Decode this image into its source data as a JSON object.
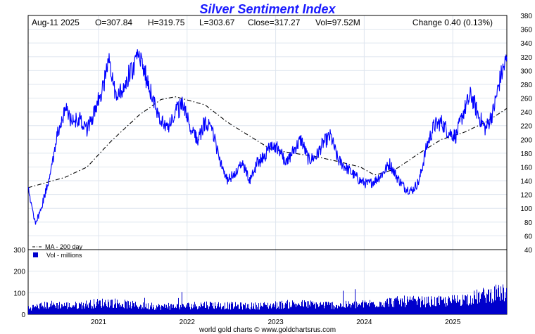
{
  "chart_data": {
    "type": "line",
    "title": "Silver Sentiment Index",
    "header": {
      "date": "Aug-11  2025",
      "open": "O=307.84",
      "high": "H=319.75",
      "low": "L=303.67",
      "close": "Close=317.27",
      "volume": "Vol=97.52M",
      "change": "Change 0.40 (0.13%)"
    },
    "x": {
      "ticks": [
        "2021",
        "2022",
        "2023",
        "2024",
        "2025"
      ],
      "range": [
        "2020-03",
        "2025-08-11"
      ]
    },
    "price_axis": {
      "ylim": [
        40,
        380
      ],
      "ticks": [
        40,
        60,
        80,
        100,
        120,
        140,
        160,
        180,
        200,
        220,
        240,
        260,
        280,
        300,
        320,
        340,
        360,
        380
      ]
    },
    "volume_axis": {
      "ylim": [
        0,
        300
      ],
      "ticks": [
        0,
        100,
        200,
        300
      ],
      "ticks_visible": [
        "0",
        "100",
        "200",
        "300"
      ]
    },
    "legend": {
      "ma_label": "MA - 200 day",
      "vol_label": "Vol - millions"
    },
    "footer": "world gold charts © www.goldchartsrus.com",
    "colors": {
      "price": "#0000ff",
      "ma": "#000000",
      "volume": "#0000cc",
      "title": "#1a1aff",
      "grid": "#dfe6ef"
    },
    "series": [
      {
        "name": "Index",
        "x": [
          "2020-03",
          "2020-04",
          "2020-05",
          "2020-06",
          "2020-07",
          "2020-08",
          "2020-09",
          "2020-10",
          "2020-11",
          "2020-12",
          "2021-01",
          "2021-02",
          "2021-03",
          "2021-04",
          "2021-05",
          "2021-06",
          "2021-07",
          "2021-08",
          "2021-09",
          "2021-10",
          "2021-11",
          "2021-12",
          "2022-01",
          "2022-02",
          "2022-03",
          "2022-04",
          "2022-05",
          "2022-06",
          "2022-07",
          "2022-08",
          "2022-09",
          "2022-10",
          "2022-11",
          "2022-12",
          "2023-01",
          "2023-02",
          "2023-03",
          "2023-04",
          "2023-05",
          "2023-06",
          "2023-07",
          "2023-08",
          "2023-09",
          "2023-10",
          "2023-11",
          "2023-12",
          "2024-01",
          "2024-02",
          "2024-03",
          "2024-04",
          "2024-05",
          "2024-06",
          "2024-07",
          "2024-08",
          "2024-09",
          "2024-10",
          "2024-11",
          "2024-12",
          "2025-01",
          "2025-02",
          "2025-03",
          "2025-04",
          "2025-05",
          "2025-06",
          "2025-07",
          "2025-08-11"
        ],
        "values": [
          130,
          75,
          110,
          150,
          210,
          245,
          225,
          230,
          215,
          240,
          270,
          310,
          260,
          280,
          300,
          320,
          290,
          255,
          230,
          215,
          240,
          250,
          215,
          200,
          225,
          210,
          170,
          140,
          150,
          165,
          140,
          165,
          175,
          195,
          185,
          165,
          185,
          200,
          170,
          175,
          195,
          205,
          170,
          160,
          150,
          140,
          135,
          140,
          150,
          165,
          145,
          130,
          125,
          140,
          190,
          220,
          225,
          210,
          205,
          240,
          265,
          235,
          215,
          240,
          290,
          317
        ]
      },
      {
        "name": "MA - 200 day",
        "x": [
          "2020-03",
          "2020-08",
          "2020-11",
          "2021-02",
          "2021-06",
          "2021-09",
          "2021-11",
          "2022-03",
          "2022-06",
          "2022-09",
          "2022-12",
          "2023-03",
          "2023-06",
          "2023-09",
          "2023-12",
          "2024-02",
          "2024-05",
          "2024-08",
          "2024-11",
          "2025-02",
          "2025-05",
          "2025-08-11"
        ],
        "values": [
          130,
          145,
          160,
          195,
          235,
          258,
          262,
          250,
          225,
          205,
          185,
          180,
          175,
          168,
          160,
          148,
          158,
          180,
          200,
          210,
          225,
          245
        ]
      }
    ],
    "volume": {
      "name": "Vol - millions",
      "x": [
        "2020-03",
        "2020-06",
        "2020-09",
        "2020-12",
        "2021-02",
        "2021-06",
        "2021-09",
        "2021-12",
        "2022-03",
        "2022-06",
        "2022-09",
        "2022-12",
        "2023-03",
        "2023-06",
        "2023-09",
        "2023-12",
        "2024-03",
        "2024-06",
        "2024-09",
        "2024-12",
        "2025-03",
        "2025-06",
        "2025-08-11"
      ],
      "values": [
        30,
        45,
        40,
        50,
        55,
        40,
        35,
        38,
        45,
        40,
        38,
        42,
        48,
        45,
        42,
        45,
        55,
        60,
        58,
        60,
        75,
        95,
        98
      ]
    }
  }
}
